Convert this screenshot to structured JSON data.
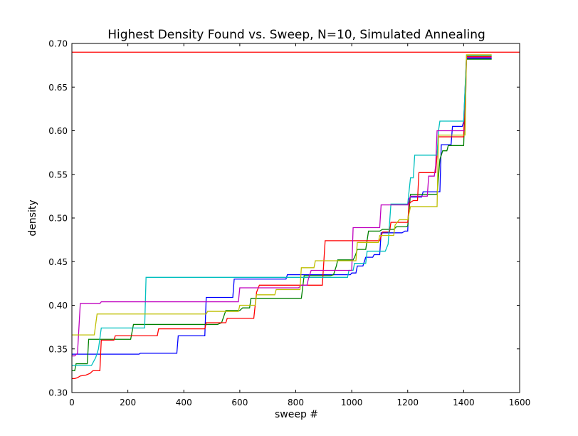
{
  "chart_data": {
    "type": "line",
    "title": "Highest Density Found vs. Sweep, N=10, Simulated Annealing",
    "xlabel": "sweep #",
    "ylabel": "density",
    "xlim": [
      0,
      1600
    ],
    "ylim": [
      0.3,
      0.7
    ],
    "xticks": [
      0,
      200,
      400,
      600,
      800,
      1000,
      1200,
      1400,
      1600
    ],
    "xtick_labels": [
      "0",
      "200",
      "400",
      "600",
      "800",
      "1000",
      "1200",
      "1400",
      "1600"
    ],
    "yticks": [
      0.3,
      0.35,
      0.4,
      0.45,
      0.5,
      0.55,
      0.6,
      0.65,
      0.7
    ],
    "ytick_labels": [
      "0.30",
      "0.35",
      "0.40",
      "0.45",
      "0.50",
      "0.55",
      "0.60",
      "0.65",
      "0.70"
    ],
    "grid": false,
    "reference_line": {
      "y": 0.69,
      "color": "#ff0000"
    },
    "series": [
      {
        "color": "#0000ff",
        "points": [
          [
            0,
            0.344
          ],
          [
            10,
            0.344
          ],
          [
            240,
            0.344
          ],
          [
            245,
            0.345
          ],
          [
            375,
            0.345
          ],
          [
            380,
            0.365
          ],
          [
            475,
            0.365
          ],
          [
            480,
            0.409
          ],
          [
            575,
            0.409
          ],
          [
            580,
            0.43
          ],
          [
            765,
            0.43
          ],
          [
            770,
            0.435
          ],
          [
            995,
            0.435
          ],
          [
            1000,
            0.437
          ],
          [
            1015,
            0.437
          ],
          [
            1020,
            0.445
          ],
          [
            1040,
            0.445
          ],
          [
            1045,
            0.45
          ],
          [
            1050,
            0.455
          ],
          [
            1075,
            0.455
          ],
          [
            1080,
            0.458
          ],
          [
            1100,
            0.458
          ],
          [
            1105,
            0.483
          ],
          [
            1180,
            0.483
          ],
          [
            1190,
            0.485
          ],
          [
            1200,
            0.485
          ],
          [
            1205,
            0.522
          ],
          [
            1210,
            0.524
          ],
          [
            1250,
            0.524
          ],
          [
            1255,
            0.53
          ],
          [
            1315,
            0.53
          ],
          [
            1320,
            0.584
          ],
          [
            1355,
            0.584
          ],
          [
            1360,
            0.605
          ],
          [
            1395,
            0.605
          ],
          [
            1400,
            0.61
          ],
          [
            1410,
            0.683
          ],
          [
            1500,
            0.683
          ]
        ]
      },
      {
        "color": "#008000",
        "points": [
          [
            0,
            0.325
          ],
          [
            10,
            0.325
          ],
          [
            15,
            0.333
          ],
          [
            55,
            0.333
          ],
          [
            60,
            0.361
          ],
          [
            210,
            0.361
          ],
          [
            220,
            0.378
          ],
          [
            520,
            0.378
          ],
          [
            535,
            0.38
          ],
          [
            550,
            0.394
          ],
          [
            600,
            0.394
          ],
          [
            610,
            0.397
          ],
          [
            635,
            0.397
          ],
          [
            640,
            0.408
          ],
          [
            820,
            0.408
          ],
          [
            830,
            0.434
          ],
          [
            925,
            0.434
          ],
          [
            935,
            0.435
          ],
          [
            945,
            0.445
          ],
          [
            950,
            0.452
          ],
          [
            1005,
            0.452
          ],
          [
            1010,
            0.455
          ],
          [
            1015,
            0.459
          ],
          [
            1020,
            0.464
          ],
          [
            1050,
            0.464
          ],
          [
            1060,
            0.485
          ],
          [
            1100,
            0.485
          ],
          [
            1110,
            0.487
          ],
          [
            1150,
            0.487
          ],
          [
            1160,
            0.49
          ],
          [
            1195,
            0.49
          ],
          [
            1200,
            0.491
          ],
          [
            1210,
            0.527
          ],
          [
            1305,
            0.527
          ],
          [
            1315,
            0.567
          ],
          [
            1325,
            0.577
          ],
          [
            1340,
            0.577
          ],
          [
            1345,
            0.583
          ],
          [
            1400,
            0.583
          ],
          [
            1410,
            0.682
          ],
          [
            1500,
            0.682
          ]
        ]
      },
      {
        "color": "#ff0000",
        "points": [
          [
            0,
            0.316
          ],
          [
            10,
            0.316
          ],
          [
            20,
            0.317
          ],
          [
            30,
            0.319
          ],
          [
            50,
            0.32
          ],
          [
            65,
            0.322
          ],
          [
            75,
            0.325
          ],
          [
            100,
            0.325
          ],
          [
            105,
            0.36
          ],
          [
            150,
            0.36
          ],
          [
            155,
            0.365
          ],
          [
            305,
            0.365
          ],
          [
            310,
            0.373
          ],
          [
            475,
            0.373
          ],
          [
            480,
            0.38
          ],
          [
            550,
            0.38
          ],
          [
            555,
            0.385
          ],
          [
            650,
            0.385
          ],
          [
            660,
            0.415
          ],
          [
            670,
            0.423
          ],
          [
            895,
            0.423
          ],
          [
            905,
            0.474
          ],
          [
            1100,
            0.474
          ],
          [
            1110,
            0.484
          ],
          [
            1135,
            0.484
          ],
          [
            1140,
            0.495
          ],
          [
            1200,
            0.495
          ],
          [
            1205,
            0.516
          ],
          [
            1210,
            0.518
          ],
          [
            1220,
            0.52
          ],
          [
            1235,
            0.52
          ],
          [
            1240,
            0.552
          ],
          [
            1300,
            0.552
          ],
          [
            1310,
            0.593
          ],
          [
            1400,
            0.593
          ],
          [
            1410,
            0.685
          ],
          [
            1500,
            0.685
          ]
        ]
      },
      {
        "color": "#00bfbf",
        "points": [
          [
            0,
            0.331
          ],
          [
            10,
            0.331
          ],
          [
            15,
            0.331
          ],
          [
            70,
            0.331
          ],
          [
            85,
            0.34
          ],
          [
            95,
            0.35
          ],
          [
            105,
            0.374
          ],
          [
            260,
            0.374
          ],
          [
            265,
            0.432
          ],
          [
            985,
            0.432
          ],
          [
            990,
            0.44
          ],
          [
            1005,
            0.44
          ],
          [
            1010,
            0.448
          ],
          [
            1050,
            0.448
          ],
          [
            1055,
            0.462
          ],
          [
            1120,
            0.462
          ],
          [
            1130,
            0.47
          ],
          [
            1140,
            0.516
          ],
          [
            1200,
            0.516
          ],
          [
            1210,
            0.546
          ],
          [
            1220,
            0.546
          ],
          [
            1225,
            0.572
          ],
          [
            1305,
            0.572
          ],
          [
            1310,
            0.6
          ],
          [
            1315,
            0.611
          ],
          [
            1400,
            0.611
          ],
          [
            1410,
            0.686
          ],
          [
            1500,
            0.686
          ]
        ]
      },
      {
        "color": "#bf00bf",
        "points": [
          [
            0,
            0.342
          ],
          [
            10,
            0.342
          ],
          [
            20,
            0.345
          ],
          [
            30,
            0.402
          ],
          [
            100,
            0.402
          ],
          [
            105,
            0.404
          ],
          [
            595,
            0.404
          ],
          [
            600,
            0.42
          ],
          [
            810,
            0.42
          ],
          [
            820,
            0.423
          ],
          [
            840,
            0.423
          ],
          [
            845,
            0.43
          ],
          [
            855,
            0.44
          ],
          [
            1000,
            0.44
          ],
          [
            1005,
            0.489
          ],
          [
            1100,
            0.489
          ],
          [
            1105,
            0.515
          ],
          [
            1195,
            0.515
          ],
          [
            1200,
            0.515
          ],
          [
            1205,
            0.52
          ],
          [
            1210,
            0.525
          ],
          [
            1270,
            0.525
          ],
          [
            1275,
            0.548
          ],
          [
            1295,
            0.548
          ],
          [
            1300,
            0.56
          ],
          [
            1305,
            0.6
          ],
          [
            1405,
            0.6
          ],
          [
            1410,
            0.684
          ],
          [
            1500,
            0.684
          ]
        ]
      },
      {
        "color": "#bfbf00",
        "points": [
          [
            0,
            0.366
          ],
          [
            10,
            0.366
          ],
          [
            80,
            0.366
          ],
          [
            90,
            0.39
          ],
          [
            480,
            0.39
          ],
          [
            485,
            0.393
          ],
          [
            595,
            0.393
          ],
          [
            600,
            0.4
          ],
          [
            620,
            0.4
          ],
          [
            630,
            0.4
          ],
          [
            655,
            0.4
          ],
          [
            660,
            0.412
          ],
          [
            725,
            0.412
          ],
          [
            730,
            0.418
          ],
          [
            815,
            0.418
          ],
          [
            820,
            0.443
          ],
          [
            865,
            0.443
          ],
          [
            870,
            0.451
          ],
          [
            1015,
            0.451
          ],
          [
            1020,
            0.472
          ],
          [
            1095,
            0.472
          ],
          [
            1100,
            0.48
          ],
          [
            1150,
            0.48
          ],
          [
            1155,
            0.492
          ],
          [
            1170,
            0.498
          ],
          [
            1200,
            0.498
          ],
          [
            1210,
            0.513
          ],
          [
            1305,
            0.513
          ],
          [
            1310,
            0.595
          ],
          [
            1405,
            0.595
          ],
          [
            1410,
            0.687
          ],
          [
            1500,
            0.687
          ]
        ]
      }
    ]
  }
}
